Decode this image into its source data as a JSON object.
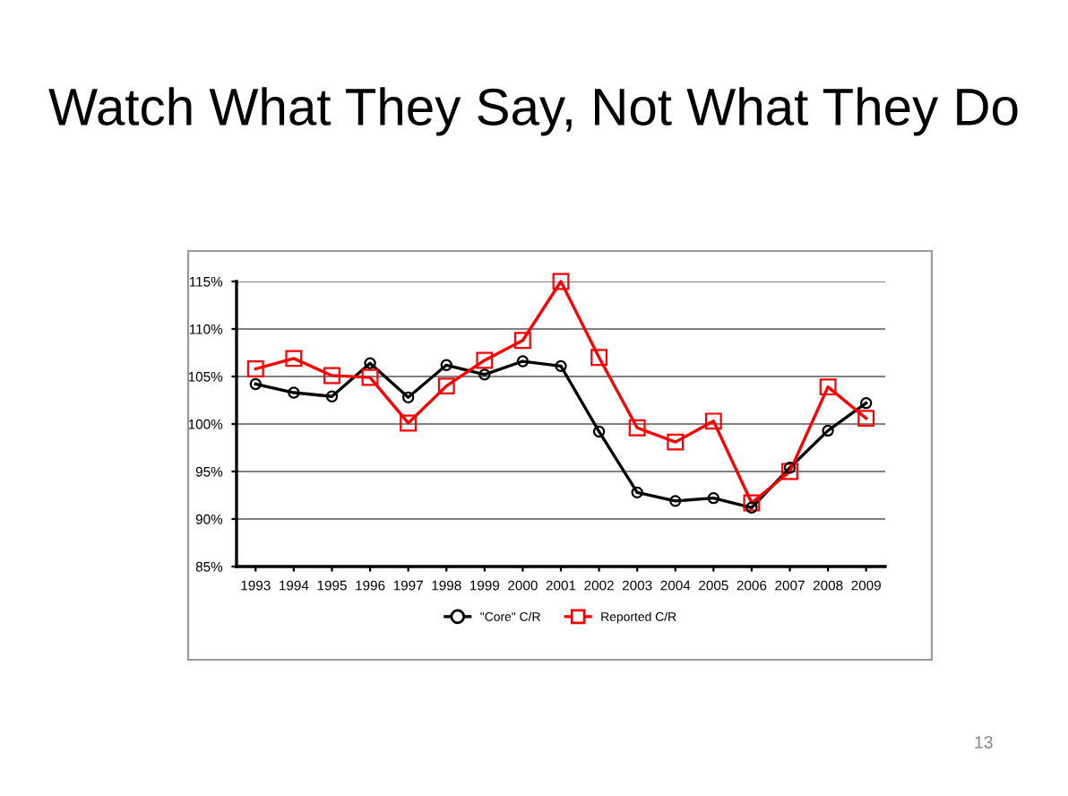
{
  "chart_data": {
    "type": "line",
    "title": "Watch What They Say, Not What They Do",
    "categories": [
      "1993",
      "1994",
      "1995",
      "1996",
      "1997",
      "1998",
      "1999",
      "2000",
      "2001",
      "2002",
      "2003",
      "2004",
      "2005",
      "2006",
      "2007",
      "2008",
      "2009"
    ],
    "series": [
      {
        "name": "\"Core\" C/R",
        "color": "#000000",
        "marker": "circle",
        "values": [
          104.2,
          103.3,
          102.9,
          106.4,
          102.8,
          106.2,
          105.2,
          106.6,
          106.1,
          99.2,
          92.8,
          91.9,
          92.2,
          91.2,
          95.4,
          99.3,
          102.2
        ]
      },
      {
        "name": "Reported C/R",
        "color": "#ff0000",
        "marker": "square",
        "values": [
          105.8,
          106.9,
          105.1,
          104.9,
          100.1,
          104.0,
          106.7,
          108.8,
          115.0,
          107.0,
          99.6,
          98.1,
          100.3,
          91.7,
          95.0,
          103.9,
          100.6
        ]
      }
    ],
    "ylim": [
      85,
      115
    ],
    "yticks": [
      {
        "value": 85,
        "label": "85%"
      },
      {
        "value": 90,
        "label": "90%"
      },
      {
        "value": 95,
        "label": "95%"
      },
      {
        "value": 100,
        "label": "100%"
      },
      {
        "value": 105,
        "label": "105%"
      },
      {
        "value": 110,
        "label": "110%"
      },
      {
        "value": 115,
        "label": "115%"
      }
    ],
    "grid": "y",
    "legend": "bottom",
    "annotations": [
      "13"
    ]
  }
}
